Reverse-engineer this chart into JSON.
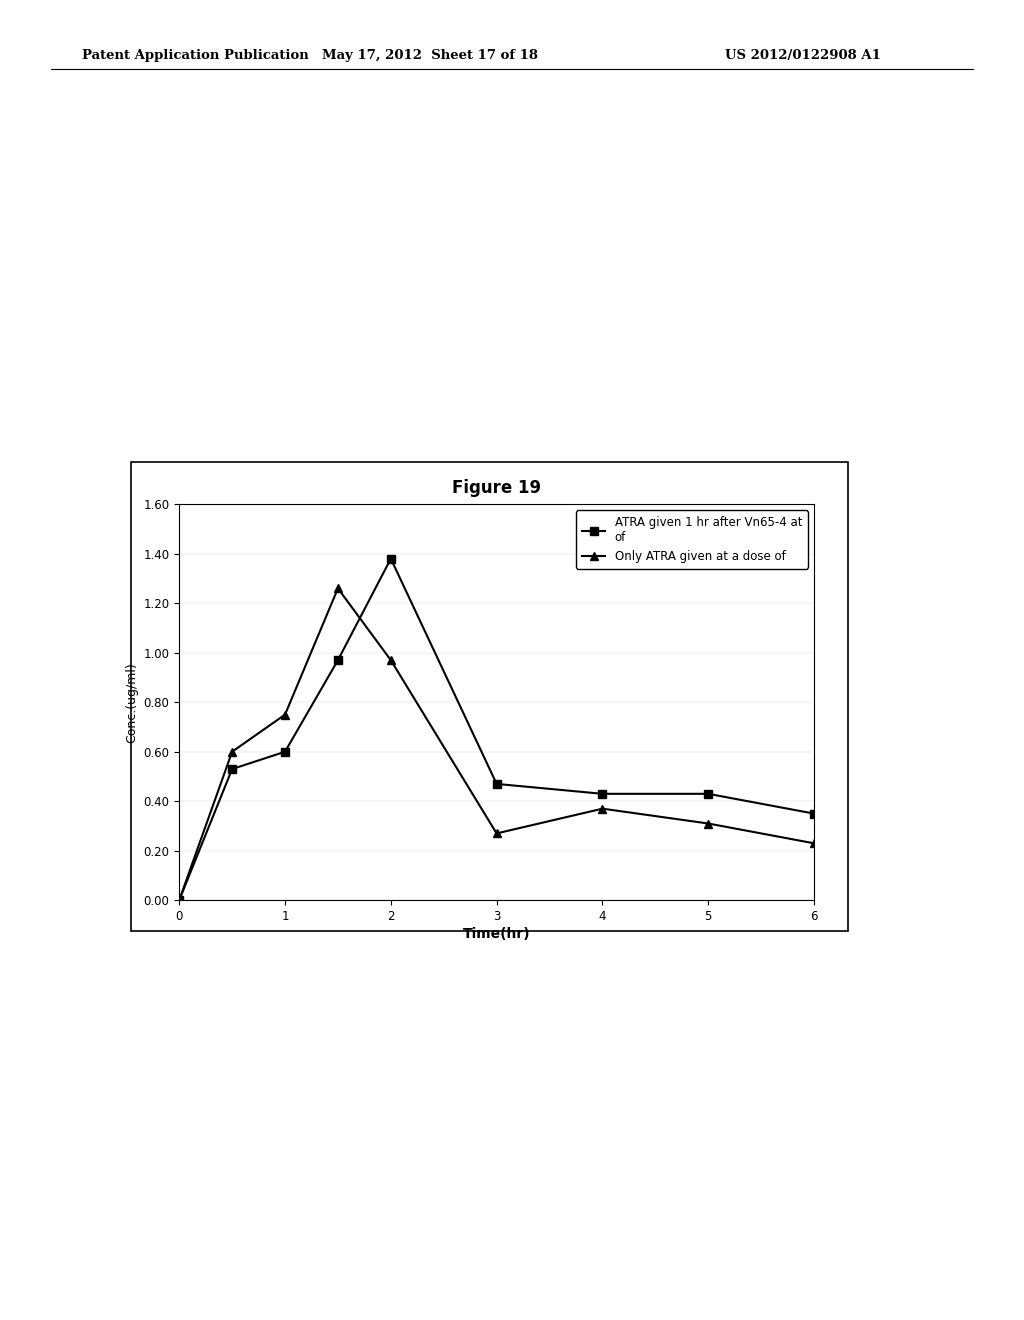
{
  "title": "Figure 19",
  "xlabel": "Time(hr)",
  "ylabel": "Conc.(ug/ml)",
  "series1_label": "ATRA given 1 hr after Vn65-4 at\nof",
  "series2_label": "Only ATRA given at a dose of",
  "series1_x": [
    0,
    0.5,
    1.0,
    1.5,
    2.0,
    3.0,
    4.0,
    5.0,
    6.0
  ],
  "series1_y": [
    0.0,
    0.53,
    0.6,
    0.97,
    1.38,
    0.47,
    0.43,
    0.43,
    0.35
  ],
  "series2_x": [
    0,
    0.5,
    1.0,
    1.5,
    2.0,
    3.0,
    4.0,
    5.0,
    6.0
  ],
  "series2_y": [
    0.0,
    0.6,
    0.75,
    1.26,
    0.97,
    0.27,
    0.37,
    0.31,
    0.23
  ],
  "ylim": [
    0.0,
    1.6
  ],
  "xlim": [
    0,
    6
  ],
  "yticks": [
    0.0,
    0.2,
    0.4,
    0.6,
    0.8,
    1.0,
    1.2,
    1.4,
    1.6
  ],
  "xticks": [
    0,
    1,
    2,
    3,
    4,
    5,
    6
  ],
  "line_color": "#000000",
  "marker1": "s",
  "marker2": "^",
  "background_color": "#ffffff",
  "fig_background": "#ffffff",
  "header_left": "Patent Application Publication",
  "header_mid": "May 17, 2012  Sheet 17 of 18",
  "header_right": "US 2012/0122908 A1"
}
